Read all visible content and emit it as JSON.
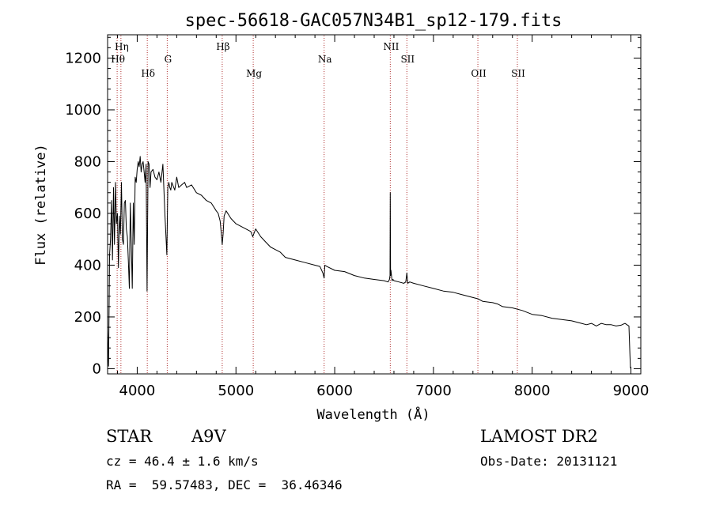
{
  "chart_data": {
    "type": "line",
    "title": "spec-56618-GAC057N34B1_sp12-179.fits",
    "xlabel": "Wavelength (Å)",
    "ylabel": "Flux (relative)",
    "xlim": [
      3700,
      9100
    ],
    "ylim": [
      -20,
      1290
    ],
    "x_ticks": [
      4000,
      5000,
      6000,
      7000,
      8000,
      9000
    ],
    "y_ticks": [
      0,
      200,
      400,
      600,
      800,
      1000,
      1200
    ],
    "grid": false,
    "line_color": "#000000",
    "marker_color": "#b03030",
    "line_markers": [
      {
        "label": "Hη",
        "wavelength": 3835,
        "row": 0
      },
      {
        "label": "Hθ",
        "wavelength": 3797,
        "row": 1
      },
      {
        "label": "Hδ",
        "wavelength": 4102,
        "row": 2
      },
      {
        "label": "G",
        "wavelength": 4304,
        "row": 1
      },
      {
        "label": "Hβ",
        "wavelength": 4861,
        "row": 0
      },
      {
        "label": "Mg",
        "wavelength": 5175,
        "row": 2
      },
      {
        "label": "Na",
        "wavelength": 5893,
        "row": 1
      },
      {
        "label": "NII",
        "wavelength": 6563,
        "row": 0
      },
      {
        "label": "SII",
        "wavelength": 6731,
        "row": 1
      },
      {
        "label": "OII",
        "wavelength": 7450,
        "row": 2
      },
      {
        "label": "SII",
        "wavelength": 7850,
        "row": 2
      }
    ],
    "series": [
      {
        "x": [
          3700,
          3710,
          3720,
          3730,
          3740,
          3750,
          3760,
          3770,
          3780,
          3790,
          3800,
          3810,
          3820,
          3830,
          3840,
          3850,
          3860,
          3870,
          3880,
          3890,
          3900,
          3910,
          3920,
          3930,
          3940,
          3950,
          3960,
          3970,
          3980,
          3990,
          4000,
          4010,
          4020,
          4030,
          4040,
          4050,
          4060,
          4070,
          4080,
          4090,
          4100,
          4110,
          4120,
          4130,
          4140,
          4160,
          4180,
          4200,
          4220,
          4240,
          4260,
          4280,
          4300,
          4310,
          4320,
          4330,
          4340,
          4350,
          4380,
          4400,
          4420,
          4450,
          4480,
          4500,
          4550,
          4600,
          4650,
          4700,
          4750,
          4800,
          4820,
          4840,
          4850,
          4861,
          4870,
          4880,
          4900,
          4950,
          5000,
          5050,
          5100,
          5150,
          5170,
          5180,
          5200,
          5250,
          5300,
          5350,
          5400,
          5450,
          5500,
          5600,
          5700,
          5800,
          5850,
          5880,
          5893,
          5900,
          5920,
          6000,
          6100,
          6200,
          6300,
          6400,
          6500,
          6540,
          6555,
          6560,
          6563,
          6566,
          6570,
          6580,
          6590,
          6600,
          6650,
          6700,
          6720,
          6731,
          6740,
          6760,
          6800,
          6900,
          7000,
          7100,
          7200,
          7300,
          7400,
          7450,
          7500,
          7600,
          7650,
          7700,
          7800,
          7900,
          8000,
          8100,
          8200,
          8300,
          8400,
          8500,
          8550,
          8600,
          8650,
          8700,
          8750,
          8800,
          8850,
          8900,
          8940,
          8960,
          8980,
          8990,
          8995,
          9000
        ],
        "y": [
          150,
          10,
          440,
          500,
          650,
          420,
          700,
          480,
          720,
          560,
          600,
          390,
          590,
          520,
          720,
          500,
          480,
          640,
          650,
          540,
          510,
          420,
          310,
          640,
          480,
          310,
          640,
          480,
          740,
          720,
          770,
          800,
          780,
          820,
          760,
          790,
          800,
          760,
          720,
          790,
          300,
          800,
          790,
          700,
          760,
          770,
          740,
          730,
          760,
          720,
          790,
          600,
          440,
          700,
          720,
          700,
          690,
          720,
          690,
          740,
          700,
          710,
          720,
          700,
          710,
          680,
          670,
          650,
          640,
          610,
          600,
          570,
          530,
          480,
          520,
          590,
          610,
          580,
          560,
          550,
          540,
          530,
          510,
          520,
          540,
          510,
          490,
          470,
          460,
          450,
          430,
          420,
          410,
          400,
          395,
          370,
          350,
          400,
          395,
          380,
          375,
          360,
          350,
          345,
          340,
          335,
          345,
          360,
          680,
          360,
          380,
          340,
          345,
          340,
          335,
          330,
          335,
          370,
          330,
          335,
          330,
          320,
          310,
          300,
          295,
          285,
          275,
          270,
          260,
          255,
          250,
          240,
          235,
          225,
          210,
          205,
          195,
          190,
          185,
          175,
          170,
          175,
          165,
          175,
          170,
          170,
          165,
          168,
          175,
          170,
          165,
          50,
          5,
          0
        ]
      }
    ]
  },
  "info": {
    "object_class": "STAR",
    "subclass": "A9V",
    "survey": "LAMOST DR2",
    "redshift_line": "cz = 46.4 ± 1.6 km/s",
    "obs_date_line": "Obs-Date: 20131121",
    "coords_line": "RA =  59.57483, DEC =  36.46346"
  }
}
